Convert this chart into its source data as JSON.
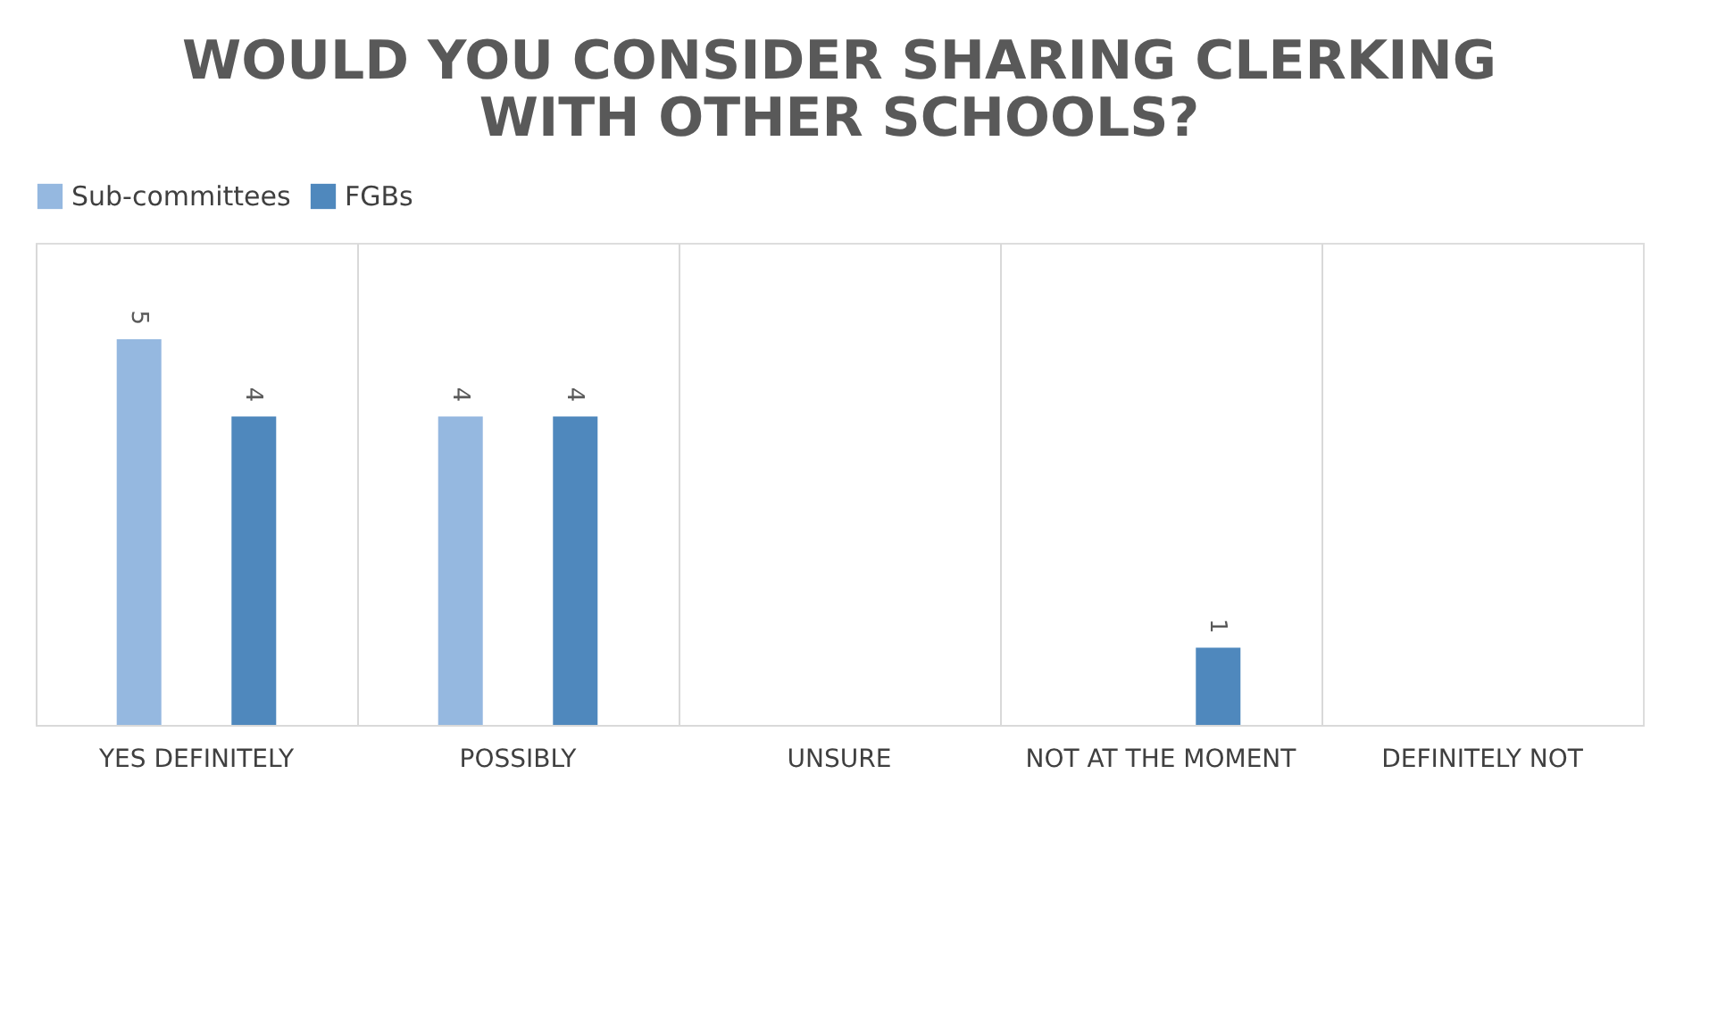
{
  "chart_data": {
    "type": "bar",
    "title": "WOULD YOU CONSIDER SHARING CLERKING WITH OTHER SCHOOLS?",
    "categories": [
      "YES DEFINITELY",
      "POSSIBLY",
      "UNSURE",
      "NOT AT THE MOMENT",
      "DEFINITELY NOT"
    ],
    "series": [
      {
        "name": "Sub-committees",
        "color": "#95b8e0",
        "values": [
          5,
          4,
          0,
          0,
          0
        ],
        "value_labels": [
          "5",
          "4",
          null,
          null,
          null
        ]
      },
      {
        "name": "FGBs",
        "color": "#4f88bd",
        "values": [
          4,
          4,
          0,
          1,
          0
        ],
        "value_labels": [
          "4",
          "4",
          null,
          "1",
          null
        ]
      }
    ],
    "grid": "x",
    "legend": "top"
  }
}
